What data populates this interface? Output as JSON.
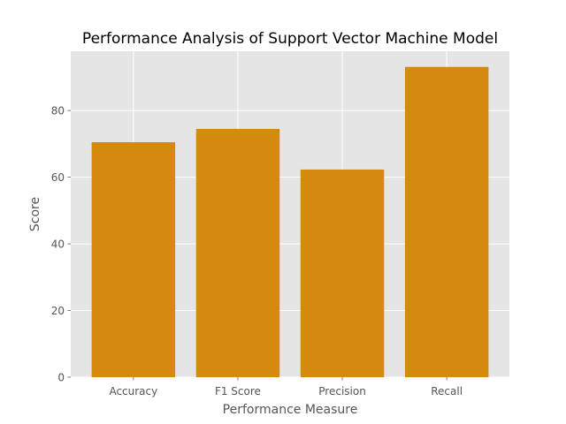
{
  "chart_data": {
    "type": "bar",
    "title": "Performance Analysis of Support Vector Machine Model",
    "xlabel": "Performance Measure",
    "ylabel": "Score",
    "categories": [
      "Accuracy",
      "F1 Score",
      "Precision",
      "Recall"
    ],
    "values": [
      70.5,
      74.5,
      62.3,
      93.1
    ],
    "ylim": [
      0,
      97.8
    ],
    "yticks": [
      0,
      20,
      40,
      60,
      80
    ],
    "grid": true,
    "bar_color": "#d4890f",
    "background_color": "#e5e5e5",
    "grid_color": "#ffffff"
  }
}
